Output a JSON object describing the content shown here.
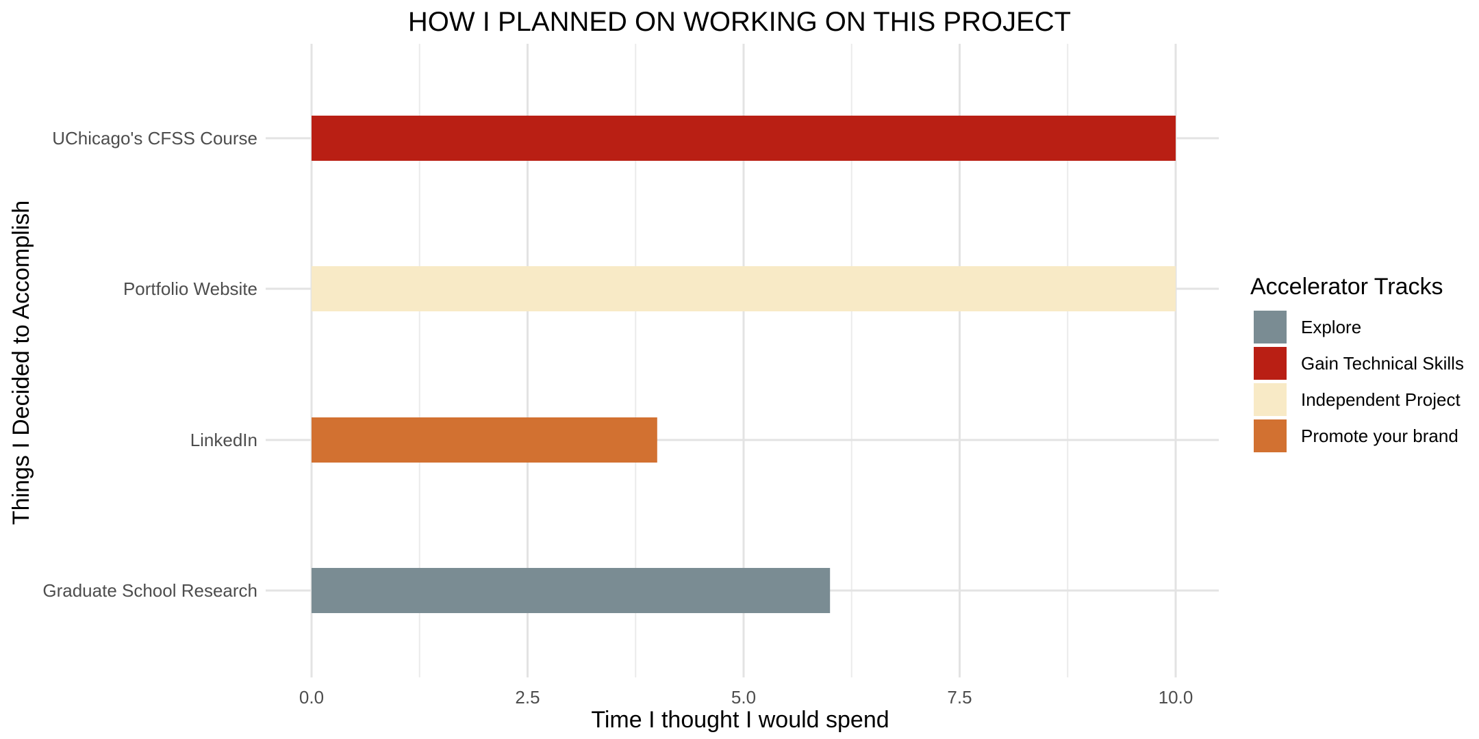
{
  "chart_data": {
    "type": "bar",
    "orientation": "horizontal",
    "title": "HOW I PLANNED ON WORKING ON THIS PROJECT",
    "xlabel": "Time I thought I would spend",
    "ylabel": "Things I Decided to Accomplish",
    "xlim": [
      0,
      10.5
    ],
    "x_ticks": [
      0.0,
      2.5,
      5.0,
      7.5,
      10.0
    ],
    "x_tick_labels": [
      "0.0",
      "2.5",
      "5.0",
      "7.5",
      "10.0"
    ],
    "categories": [
      "Graduate School Research",
      "LinkedIn",
      "Portfolio Website",
      "UChicago's CFSS Course"
    ],
    "values": [
      6,
      4,
      10,
      10
    ],
    "groups": [
      "Explore",
      "Promote your brand",
      "Independent Project",
      "Gain Technical Skills"
    ],
    "grid": true,
    "legend": {
      "title": "Accelerator Tracks",
      "position": "right",
      "entries": [
        {
          "label": "Explore",
          "color": "#7a8c93"
        },
        {
          "label": "Gain Technical Skills",
          "color": "#b91f14"
        },
        {
          "label": "Independent Project",
          "color": "#f8eac6"
        },
        {
          "label": "Promote your brand",
          "color": "#d27131"
        }
      ]
    }
  }
}
